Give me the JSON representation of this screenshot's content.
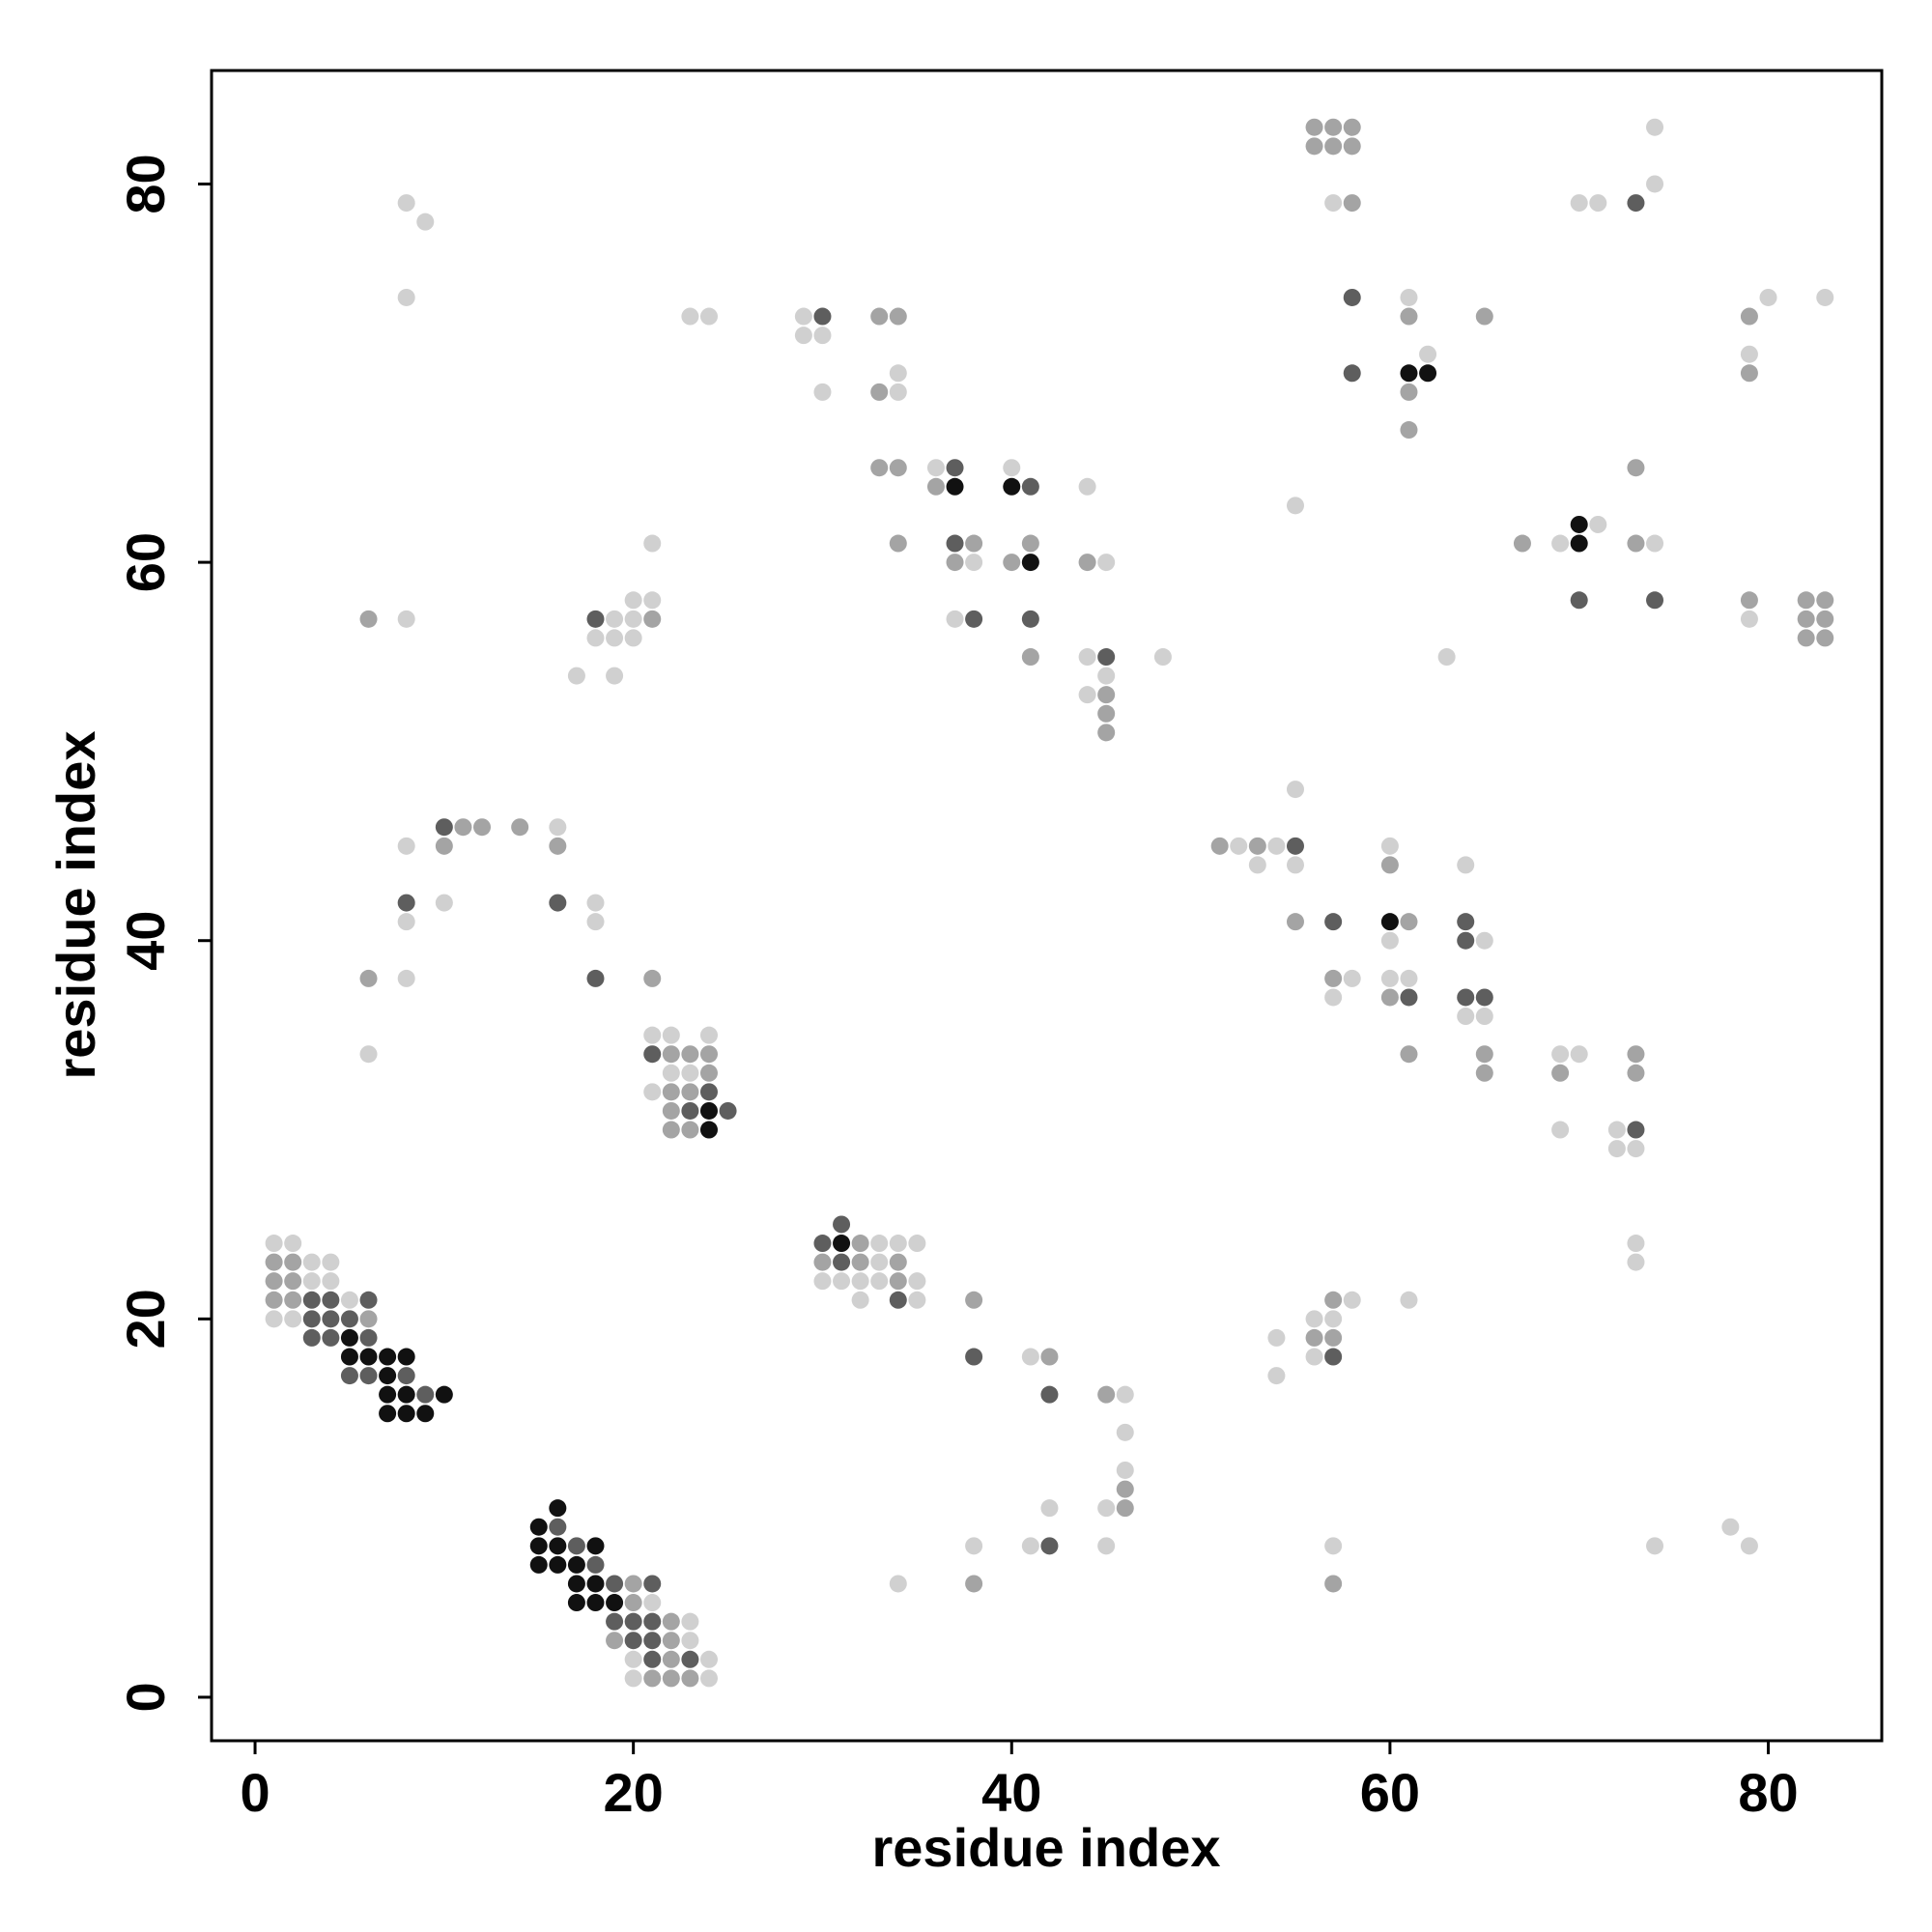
{
  "chart_data": {
    "type": "scatter",
    "title": "",
    "xlabel": "residue index",
    "ylabel": "residue index",
    "xlim": [
      -2.3,
      86
    ],
    "ylim": [
      -2.3,
      86
    ],
    "xticks": [
      0,
      20,
      40,
      60,
      80
    ],
    "yticks": [
      0,
      20,
      40,
      60,
      80
    ],
    "grid": false,
    "legend": "none",
    "point_color_scale": "grayscale: higher value = darker (1 light, 4 black)",
    "points": [
      [
        1,
        24,
        1
      ],
      [
        2,
        24,
        1
      ],
      [
        1,
        23,
        2
      ],
      [
        2,
        23,
        2
      ],
      [
        3,
        23,
        1
      ],
      [
        4,
        23,
        1
      ],
      [
        1,
        22,
        2
      ],
      [
        2,
        22,
        2
      ],
      [
        3,
        22,
        1
      ],
      [
        4,
        22,
        1
      ],
      [
        1,
        21,
        2
      ],
      [
        2,
        21,
        2
      ],
      [
        3,
        21,
        3
      ],
      [
        4,
        21,
        3
      ],
      [
        5,
        21,
        1
      ],
      [
        6,
        21,
        3
      ],
      [
        1,
        20,
        1
      ],
      [
        2,
        20,
        1
      ],
      [
        3,
        20,
        3
      ],
      [
        4,
        20,
        3
      ],
      [
        5,
        20,
        3
      ],
      [
        6,
        20,
        2
      ],
      [
        3,
        19,
        3
      ],
      [
        4,
        19,
        3
      ],
      [
        5,
        19,
        4
      ],
      [
        6,
        19,
        3
      ],
      [
        5,
        18,
        4
      ],
      [
        6,
        18,
        4
      ],
      [
        7,
        18,
        4
      ],
      [
        8,
        18,
        4
      ],
      [
        5,
        17,
        3
      ],
      [
        6,
        17,
        3
      ],
      [
        7,
        17,
        4
      ],
      [
        8,
        17,
        3
      ],
      [
        7,
        16,
        4
      ],
      [
        8,
        16,
        4
      ],
      [
        9,
        16,
        3
      ],
      [
        10,
        16,
        4
      ],
      [
        7,
        15,
        4
      ],
      [
        8,
        15,
        4
      ],
      [
        9,
        15,
        4
      ],
      [
        15,
        9,
        4
      ],
      [
        16,
        10,
        4
      ],
      [
        16,
        9,
        3
      ],
      [
        15,
        8,
        4
      ],
      [
        16,
        8,
        4
      ],
      [
        17,
        8,
        3
      ],
      [
        18,
        8,
        4
      ],
      [
        15,
        7,
        4
      ],
      [
        16,
        7,
        4
      ],
      [
        17,
        7,
        4
      ],
      [
        18,
        7,
        3
      ],
      [
        17,
        6,
        4
      ],
      [
        18,
        6,
        4
      ],
      [
        19,
        6,
        3
      ],
      [
        20,
        6,
        2
      ],
      [
        21,
        6,
        3
      ],
      [
        17,
        5,
        4
      ],
      [
        18,
        5,
        4
      ],
      [
        19,
        5,
        4
      ],
      [
        20,
        5,
        2
      ],
      [
        21,
        5,
        1
      ],
      [
        19,
        4,
        3
      ],
      [
        20,
        4,
        3
      ],
      [
        21,
        4,
        3
      ],
      [
        22,
        4,
        2
      ],
      [
        23,
        4,
        1
      ],
      [
        19,
        3,
        2
      ],
      [
        20,
        3,
        3
      ],
      [
        21,
        3,
        3
      ],
      [
        22,
        3,
        2
      ],
      [
        23,
        3,
        1
      ],
      [
        20,
        2,
        1
      ],
      [
        21,
        2,
        3
      ],
      [
        22,
        2,
        2
      ],
      [
        23,
        2,
        3
      ],
      [
        24,
        2,
        1
      ],
      [
        20,
        1,
        1
      ],
      [
        21,
        1,
        2
      ],
      [
        22,
        1,
        2
      ],
      [
        23,
        1,
        2
      ],
      [
        24,
        1,
        1
      ],
      [
        21,
        35,
        1
      ],
      [
        22,
        35,
        1
      ],
      [
        24,
        35,
        1
      ],
      [
        21,
        34,
        3
      ],
      [
        22,
        34,
        2
      ],
      [
        23,
        34,
        2
      ],
      [
        24,
        34,
        2
      ],
      [
        22,
        33,
        1
      ],
      [
        23,
        33,
        1
      ],
      [
        24,
        33,
        2
      ],
      [
        21,
        32,
        1
      ],
      [
        22,
        32,
        2
      ],
      [
        23,
        32,
        2
      ],
      [
        24,
        32,
        3
      ],
      [
        22,
        31,
        2
      ],
      [
        23,
        31,
        3
      ],
      [
        24,
        31,
        4
      ],
      [
        25,
        31,
        3
      ],
      [
        22,
        30,
        2
      ],
      [
        23,
        30,
        2
      ],
      [
        24,
        30,
        4
      ],
      [
        31,
        25,
        3
      ],
      [
        30,
        24,
        3
      ],
      [
        31,
        24,
        4
      ],
      [
        32,
        24,
        2
      ],
      [
        33,
        24,
        1
      ],
      [
        34,
        24,
        1
      ],
      [
        35,
        24,
        1
      ],
      [
        30,
        23,
        2
      ],
      [
        31,
        23,
        3
      ],
      [
        32,
        23,
        2
      ],
      [
        33,
        23,
        1
      ],
      [
        34,
        23,
        2
      ],
      [
        30,
        22,
        1
      ],
      [
        31,
        22,
        1
      ],
      [
        32,
        22,
        1
      ],
      [
        33,
        22,
        1
      ],
      [
        34,
        22,
        2
      ],
      [
        35,
        22,
        1
      ],
      [
        32,
        21,
        1
      ],
      [
        34,
        21,
        3
      ],
      [
        35,
        21,
        1
      ],
      [
        38,
        21,
        2
      ],
      [
        38,
        18,
        3
      ],
      [
        41,
        18,
        1
      ],
      [
        42,
        18,
        2
      ],
      [
        42,
        16,
        3
      ],
      [
        45,
        16,
        2
      ],
      [
        46,
        16,
        1
      ],
      [
        46,
        14,
        1
      ],
      [
        46,
        12,
        1
      ],
      [
        46,
        11,
        2
      ],
      [
        42,
        10,
        1
      ],
      [
        45,
        10,
        1
      ],
      [
        46,
        10,
        2
      ],
      [
        38,
        8,
        1
      ],
      [
        41,
        8,
        1
      ],
      [
        42,
        8,
        3
      ],
      [
        45,
        8,
        1
      ],
      [
        34,
        6,
        1
      ],
      [
        38,
        6,
        2
      ],
      [
        6,
        57,
        2
      ],
      [
        8,
        57,
        1
      ],
      [
        8,
        79,
        1
      ],
      [
        9,
        78,
        1
      ],
      [
        8,
        74,
        1
      ],
      [
        6,
        38,
        2
      ],
      [
        8,
        38,
        1
      ],
      [
        6,
        34,
        1
      ],
      [
        8,
        45,
        1
      ],
      [
        8,
        42,
        3
      ],
      [
        8,
        41,
        1
      ],
      [
        10,
        46,
        3
      ],
      [
        11,
        46,
        2
      ],
      [
        12,
        46,
        2
      ],
      [
        14,
        46,
        2
      ],
      [
        10,
        45,
        2
      ],
      [
        10,
        42,
        1
      ],
      [
        16,
        46,
        1
      ],
      [
        16,
        45,
        2
      ],
      [
        16,
        42,
        3
      ],
      [
        18,
        42,
        1
      ],
      [
        18,
        41,
        1
      ],
      [
        18,
        38,
        3
      ],
      [
        21,
        38,
        2
      ],
      [
        17,
        54,
        1
      ],
      [
        19,
        54,
        1
      ],
      [
        18,
        57,
        3
      ],
      [
        19,
        57,
        1
      ],
      [
        20,
        57,
        1
      ],
      [
        21,
        57,
        2
      ],
      [
        18,
        56,
        1
      ],
      [
        19,
        56,
        1
      ],
      [
        20,
        56,
        1
      ],
      [
        20,
        58,
        1
      ],
      [
        21,
        58,
        1
      ],
      [
        21,
        61,
        1
      ],
      [
        23,
        73,
        1
      ],
      [
        24,
        73,
        1
      ],
      [
        29,
        73,
        1
      ],
      [
        30,
        73,
        3
      ],
      [
        33,
        73,
        2
      ],
      [
        34,
        73,
        2
      ],
      [
        29,
        72,
        1
      ],
      [
        30,
        72,
        1
      ],
      [
        34,
        70,
        1
      ],
      [
        30,
        69,
        1
      ],
      [
        33,
        69,
        2
      ],
      [
        34,
        69,
        1
      ],
      [
        33,
        65,
        2
      ],
      [
        34,
        65,
        2
      ],
      [
        34,
        61,
        2
      ],
      [
        36,
        65,
        1
      ],
      [
        37,
        65,
        3
      ],
      [
        36,
        64,
        2
      ],
      [
        37,
        64,
        4
      ],
      [
        37,
        61,
        3
      ],
      [
        38,
        61,
        2
      ],
      [
        37,
        60,
        2
      ],
      [
        38,
        60,
        1
      ],
      [
        37,
        57,
        1
      ],
      [
        38,
        57,
        3
      ],
      [
        40,
        65,
        1
      ],
      [
        40,
        64,
        4
      ],
      [
        41,
        64,
        3
      ],
      [
        41,
        61,
        2
      ],
      [
        40,
        60,
        2
      ],
      [
        41,
        60,
        4
      ],
      [
        41,
        57,
        3
      ],
      [
        41,
        55,
        2
      ],
      [
        44,
        64,
        1
      ],
      [
        44,
        60,
        2
      ],
      [
        45,
        60,
        1
      ],
      [
        44,
        55,
        1
      ],
      [
        45,
        55,
        3
      ],
      [
        48,
        55,
        1
      ],
      [
        45,
        54,
        1
      ],
      [
        44,
        53,
        1
      ],
      [
        45,
        53,
        2
      ],
      [
        45,
        52,
        2
      ],
      [
        45,
        51,
        2
      ],
      [
        51,
        45,
        2
      ],
      [
        52,
        45,
        1
      ],
      [
        53,
        45,
        2
      ],
      [
        54,
        45,
        1
      ],
      [
        55,
        45,
        3
      ],
      [
        53,
        44,
        1
      ],
      [
        55,
        44,
        1
      ],
      [
        55,
        48,
        1
      ],
      [
        55,
        41,
        2
      ],
      [
        57,
        41,
        3
      ],
      [
        57,
        38,
        2
      ],
      [
        58,
        38,
        1
      ],
      [
        57,
        37,
        1
      ],
      [
        60,
        45,
        1
      ],
      [
        60,
        44,
        2
      ],
      [
        60,
        41,
        4
      ],
      [
        61,
        41,
        2
      ],
      [
        60,
        40,
        1
      ],
      [
        60,
        38,
        1
      ],
      [
        61,
        38,
        1
      ],
      [
        60,
        37,
        2
      ],
      [
        61,
        37,
        3
      ],
      [
        61,
        34,
        2
      ],
      [
        64,
        44,
        1
      ],
      [
        64,
        41,
        3
      ],
      [
        64,
        40,
        3
      ],
      [
        65,
        40,
        1
      ],
      [
        64,
        37,
        3
      ],
      [
        65,
        37,
        3
      ],
      [
        64,
        36,
        1
      ],
      [
        65,
        36,
        1
      ],
      [
        65,
        34,
        2
      ],
      [
        65,
        33,
        2
      ],
      [
        69,
        34,
        1
      ],
      [
        70,
        34,
        1
      ],
      [
        69,
        33,
        2
      ],
      [
        69,
        30,
        1
      ],
      [
        72,
        30,
        1
      ],
      [
        73,
        30,
        3
      ],
      [
        73,
        34,
        2
      ],
      [
        73,
        33,
        2
      ],
      [
        72,
        29,
        1
      ],
      [
        73,
        29,
        1
      ],
      [
        73,
        24,
        1
      ],
      [
        73,
        23,
        1
      ],
      [
        54,
        19,
        1
      ],
      [
        54,
        17,
        1
      ],
      [
        56,
        20,
        1
      ],
      [
        57,
        20,
        1
      ],
      [
        56,
        19,
        2
      ],
      [
        57,
        19,
        2
      ],
      [
        56,
        18,
        1
      ],
      [
        57,
        18,
        3
      ],
      [
        57,
        21,
        2
      ],
      [
        58,
        21,
        1
      ],
      [
        61,
        21,
        1
      ],
      [
        57,
        8,
        1
      ],
      [
        57,
        6,
        2
      ],
      [
        74,
        8,
        1
      ],
      [
        78,
        9,
        1
      ],
      [
        79,
        8,
        1
      ],
      [
        55,
        63,
        1
      ],
      [
        63,
        55,
        1
      ],
      [
        67,
        61,
        2
      ],
      [
        69,
        61,
        1
      ],
      [
        70,
        62,
        4
      ],
      [
        70,
        61,
        4
      ],
      [
        71,
        62,
        1
      ],
      [
        73,
        61,
        2
      ],
      [
        74,
        61,
        1
      ],
      [
        73,
        65,
        2
      ],
      [
        70,
        58,
        3
      ],
      [
        74,
        58,
        3
      ],
      [
        79,
        58,
        2
      ],
      [
        79,
        57,
        1
      ],
      [
        82,
        58,
        2
      ],
      [
        83,
        58,
        2
      ],
      [
        82,
        57,
        2
      ],
      [
        83,
        57,
        2
      ],
      [
        82,
        56,
        2
      ],
      [
        83,
        56,
        2
      ],
      [
        79,
        73,
        2
      ],
      [
        80,
        74,
        1
      ],
      [
        83,
        74,
        1
      ],
      [
        79,
        71,
        1
      ],
      [
        79,
        70,
        2
      ],
      [
        56,
        83,
        2
      ],
      [
        57,
        83,
        2
      ],
      [
        58,
        83,
        2
      ],
      [
        56,
        82,
        2
      ],
      [
        57,
        82,
        2
      ],
      [
        58,
        82,
        2
      ],
      [
        57,
        79,
        1
      ],
      [
        58,
        79,
        2
      ],
      [
        58,
        74,
        3
      ],
      [
        58,
        70,
        3
      ],
      [
        61,
        74,
        1
      ],
      [
        61,
        73,
        2
      ],
      [
        62,
        71,
        1
      ],
      [
        61,
        70,
        4
      ],
      [
        62,
        70,
        4
      ],
      [
        61,
        69,
        2
      ],
      [
        61,
        67,
        2
      ],
      [
        65,
        73,
        2
      ],
      [
        70,
        79,
        1
      ],
      [
        71,
        79,
        1
      ],
      [
        73,
        79,
        3
      ],
      [
        74,
        80,
        1
      ],
      [
        74,
        83,
        1
      ]
    ]
  }
}
